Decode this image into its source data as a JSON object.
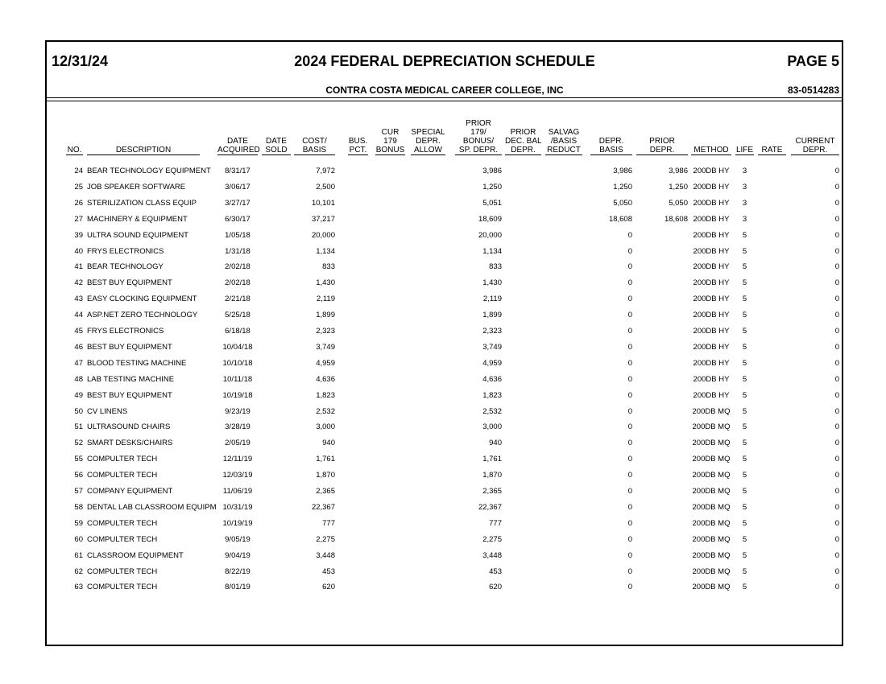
{
  "header": {
    "date": "12/31/24",
    "title": "2024 FEDERAL DEPRECIATION SCHEDULE",
    "page": "PAGE 5",
    "company": "CONTRA COSTA MEDICAL CAREER COLLEGE, INC",
    "ein": "83-0514283"
  },
  "table": {
    "columns": [
      [
        "NO."
      ],
      [
        "DESCRIPTION"
      ],
      [
        "DATE",
        "ACQUIRED"
      ],
      [
        "DATE",
        "SOLD"
      ],
      [
        "COST/",
        "BASIS"
      ],
      [
        "BUS.",
        "PCT."
      ],
      [
        "CUR",
        "179",
        "BONUS"
      ],
      [
        "SPECIAL",
        "DEPR.",
        "ALLOW"
      ],
      [
        "PRIOR",
        "179/",
        "BONUS/",
        "SP. DEPR."
      ],
      [
        "PRIOR",
        "DEC. BAL",
        "DEPR."
      ],
      [
        "SALVAG",
        "/BASIS",
        "REDUCT"
      ],
      [
        "DEPR.",
        "BASIS"
      ],
      [
        "PRIOR",
        "DEPR."
      ],
      [
        "METHOD"
      ],
      [
        "LIFE"
      ],
      [
        "RATE"
      ],
      [
        "CURRENT",
        "DEPR."
      ]
    ],
    "rows": [
      [
        "24",
        "BEAR TECHNOLOGY EQUIPMENT",
        "8/31/17",
        null,
        "7,972",
        null,
        null,
        null,
        "3,986",
        null,
        null,
        "3,986",
        "3,986",
        "200DB HY",
        "3",
        null,
        "0"
      ],
      [
        "25",
        "JOB SPEAKER SOFTWARE",
        "3/06/17",
        null,
        "2,500",
        null,
        null,
        null,
        "1,250",
        null,
        null,
        "1,250",
        "1,250",
        "200DB HY",
        "3",
        null,
        "0"
      ],
      [
        "26",
        "STERILIZATION CLASS EQUIP",
        "3/27/17",
        null,
        "10,101",
        null,
        null,
        null,
        "5,051",
        null,
        null,
        "5,050",
        "5,050",
        "200DB HY",
        "3",
        null,
        "0"
      ],
      [
        "27",
        "MACHINERY & EQUIPMENT",
        "6/30/17",
        null,
        "37,217",
        null,
        null,
        null,
        "18,609",
        null,
        null,
        "18,608",
        "18,608",
        "200DB HY",
        "3",
        null,
        "0"
      ],
      [
        "39",
        "ULTRA SOUND EQUIPMENT",
        "1/05/18",
        null,
        "20,000",
        null,
        null,
        null,
        "20,000",
        null,
        null,
        "0",
        null,
        "200DB HY",
        "5",
        null,
        "0"
      ],
      [
        "40",
        "FRYS ELECTRONICS",
        "1/31/18",
        null,
        "1,134",
        null,
        null,
        null,
        "1,134",
        null,
        null,
        "0",
        null,
        "200DB HY",
        "5",
        null,
        "0"
      ],
      [
        "41",
        "BEAR TECHNOLOGY",
        "2/02/18",
        null,
        "833",
        null,
        null,
        null,
        "833",
        null,
        null,
        "0",
        null,
        "200DB HY",
        "5",
        null,
        "0"
      ],
      [
        "42",
        "BEST BUY EQUIPMENT",
        "2/02/18",
        null,
        "1,430",
        null,
        null,
        null,
        "1,430",
        null,
        null,
        "0",
        null,
        "200DB HY",
        "5",
        null,
        "0"
      ],
      [
        "43",
        "EASY CLOCKING EQUIPMENT",
        "2/21/18",
        null,
        "2,119",
        null,
        null,
        null,
        "2,119",
        null,
        null,
        "0",
        null,
        "200DB HY",
        "5",
        null,
        "0"
      ],
      [
        "44",
        "ASP.NET ZERO TECHNOLOGY",
        "5/25/18",
        null,
        "1,899",
        null,
        null,
        null,
        "1,899",
        null,
        null,
        "0",
        null,
        "200DB HY",
        "5",
        null,
        "0"
      ],
      [
        "45",
        "FRYS ELECTRONICS",
        "6/18/18",
        null,
        "2,323",
        null,
        null,
        null,
        "2,323",
        null,
        null,
        "0",
        null,
        "200DB HY",
        "5",
        null,
        "0"
      ],
      [
        "46",
        "BEST BUY EQUIPMENT",
        "10/04/18",
        null,
        "3,749",
        null,
        null,
        null,
        "3,749",
        null,
        null,
        "0",
        null,
        "200DB HY",
        "5",
        null,
        "0"
      ],
      [
        "47",
        "BLOOD TESTING MACHINE",
        "10/10/18",
        null,
        "4,959",
        null,
        null,
        null,
        "4,959",
        null,
        null,
        "0",
        null,
        "200DB HY",
        "5",
        null,
        "0"
      ],
      [
        "48",
        "LAB TESTING MACHINE",
        "10/11/18",
        null,
        "4,636",
        null,
        null,
        null,
        "4,636",
        null,
        null,
        "0",
        null,
        "200DB HY",
        "5",
        null,
        "0"
      ],
      [
        "49",
        "BEST BUY EQUIPMENT",
        "10/19/18",
        null,
        "1,823",
        null,
        null,
        null,
        "1,823",
        null,
        null,
        "0",
        null,
        "200DB HY",
        "5",
        null,
        "0"
      ],
      [
        "50",
        "CV LINENS",
        "9/23/19",
        null,
        "2,532",
        null,
        null,
        null,
        "2,532",
        null,
        null,
        "0",
        null,
        "200DB MQ",
        "5",
        null,
        "0"
      ],
      [
        "51",
        "ULTRASOUND CHAIRS",
        "3/28/19",
        null,
        "3,000",
        null,
        null,
        null,
        "3,000",
        null,
        null,
        "0",
        null,
        "200DB MQ",
        "5",
        null,
        "0"
      ],
      [
        "52",
        "SMART DESKS/CHAIRS",
        "2/05/19",
        null,
        "940",
        null,
        null,
        null,
        "940",
        null,
        null,
        "0",
        null,
        "200DB MQ",
        "5",
        null,
        "0"
      ],
      [
        "55",
        "COMPULTER TECH",
        "12/11/19",
        null,
        "1,761",
        null,
        null,
        null,
        "1,761",
        null,
        null,
        "0",
        null,
        "200DB MQ",
        "5",
        null,
        "0"
      ],
      [
        "56",
        "COMPULTER TECH",
        "12/03/19",
        null,
        "1,870",
        null,
        null,
        null,
        "1,870",
        null,
        null,
        "0",
        null,
        "200DB MQ",
        "5",
        null,
        "0"
      ],
      [
        "57",
        "COMPANY EQUIPMENT",
        "11/06/19",
        null,
        "2,365",
        null,
        null,
        null,
        "2,365",
        null,
        null,
        "0",
        null,
        "200DB MQ",
        "5",
        null,
        "0"
      ],
      [
        "58",
        "DENTAL LAB CLASSROOM EQUIPM",
        "10/31/19",
        null,
        "22,367",
        null,
        null,
        null,
        "22,367",
        null,
        null,
        "0",
        null,
        "200DB MQ",
        "5",
        null,
        "0"
      ],
      [
        "59",
        "COMPULTER TECH",
        "10/19/19",
        null,
        "777",
        null,
        null,
        null,
        "777",
        null,
        null,
        "0",
        null,
        "200DB MQ",
        "5",
        null,
        "0"
      ],
      [
        "60",
        "COMPULTER TECH",
        "9/05/19",
        null,
        "2,275",
        null,
        null,
        null,
        "2,275",
        null,
        null,
        "0",
        null,
        "200DB MQ",
        "5",
        null,
        "0"
      ],
      [
        "61",
        "CLASSROOM EQUIPMENT",
        "9/04/19",
        null,
        "3,448",
        null,
        null,
        null,
        "3,448",
        null,
        null,
        "0",
        null,
        "200DB MQ",
        "5",
        null,
        "0"
      ],
      [
        "62",
        "COMPULTER TECH",
        "8/22/19",
        null,
        "453",
        null,
        null,
        null,
        "453",
        null,
        null,
        "0",
        null,
        "200DB MQ",
        "5",
        null,
        "0"
      ],
      [
        "63",
        "COMPULTER TECH",
        "8/01/19",
        null,
        "620",
        null,
        null,
        null,
        "620",
        null,
        null,
        "0",
        null,
        "200DB MQ",
        "5",
        null,
        "0"
      ]
    ]
  }
}
